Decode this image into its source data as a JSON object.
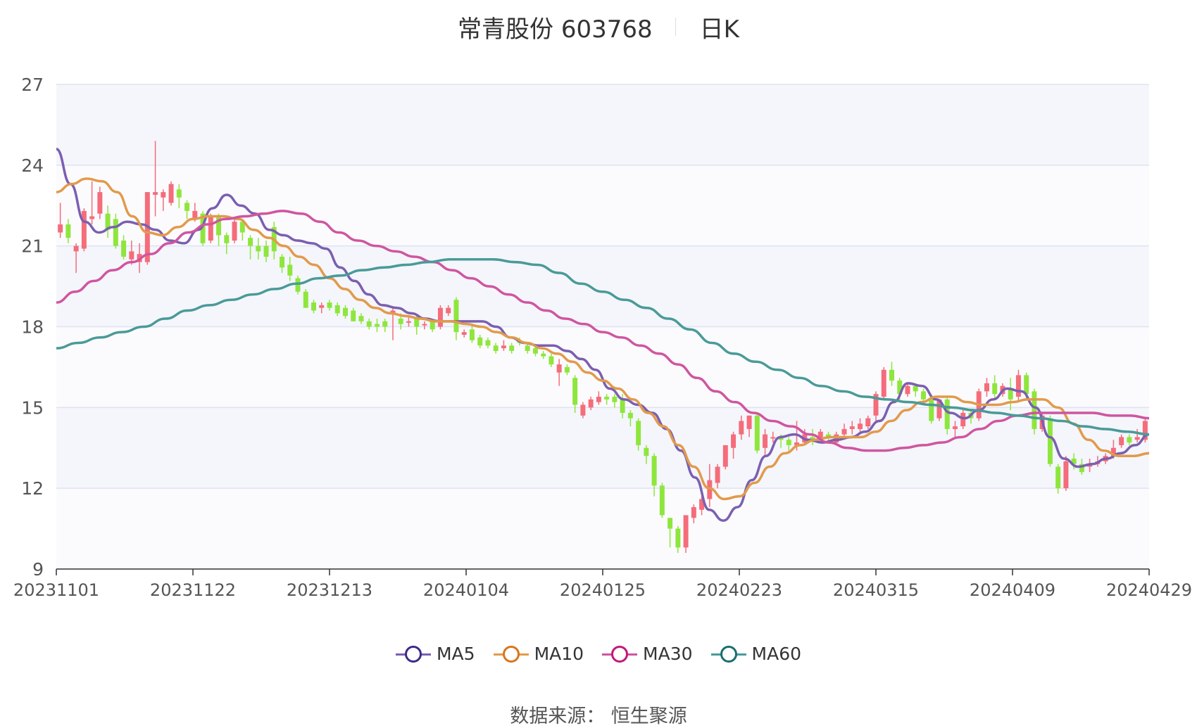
{
  "header": {
    "stock": "常青股份 603768",
    "period": "日K"
  },
  "legend": [
    {
      "label": "MA5",
      "color": "#7b5fb0",
      "ring": "#3d2a8a"
    },
    {
      "label": "MA10",
      "color": "#e29a4b",
      "ring": "#d9751a"
    },
    {
      "label": "MA30",
      "color": "#d055a0",
      "ring": "#c2187a"
    },
    {
      "label": "MA60",
      "color": "#4a9a98",
      "ring": "#1a6e6e"
    }
  ],
  "source": "数据来源： 恒生聚源",
  "colors": {
    "up": "#f56c7a",
    "down": "#8ee63d",
    "grid": "#dde3f2",
    "band": "#f4f6fb"
  },
  "chart_data": {
    "type": "candlestick",
    "title": "常青股份 603768",
    "ylim": [
      9,
      27
    ],
    "yticks": [
      "9",
      "12",
      "15",
      "18",
      "21",
      "24",
      "27"
    ],
    "xticks": [
      "20231101",
      "20231122",
      "20231213",
      "20240104",
      "20240125",
      "20240223",
      "20240315",
      "20240409",
      "20240429"
    ],
    "candles": [
      [
        21.5,
        21.8,
        21.3,
        22.6
      ],
      [
        21.8,
        21.3,
        21.1,
        22.0
      ],
      [
        20.8,
        21.0,
        20.0,
        21.1
      ],
      [
        20.9,
        22.3,
        20.8,
        22.4
      ],
      [
        22.0,
        22.1,
        21.8,
        23.4
      ],
      [
        22.2,
        23.0,
        22.0,
        23.2
      ],
      [
        22.2,
        21.6,
        21.3,
        22.5
      ],
      [
        22.0,
        21.0,
        20.9,
        22.2
      ],
      [
        21.2,
        20.6,
        20.5,
        21.4
      ],
      [
        20.5,
        20.8,
        20.3,
        21.2
      ],
      [
        20.4,
        20.7,
        20.0,
        21.1
      ],
      [
        20.4,
        23.0,
        20.3,
        23.0
      ],
      [
        22.9,
        23.0,
        22.1,
        24.9
      ],
      [
        22.8,
        23.0,
        22.3,
        23.1
      ],
      [
        22.6,
        23.3,
        22.5,
        23.4
      ],
      [
        23.1,
        22.8,
        22.4,
        23.3
      ],
      [
        22.6,
        22.3,
        22.0,
        22.7
      ],
      [
        22.0,
        22.3,
        21.9,
        22.6
      ],
      [
        22.2,
        21.1,
        21.0,
        22.3
      ],
      [
        21.2,
        22.1,
        21.1,
        22.2
      ],
      [
        22.1,
        21.4,
        21.0,
        22.2
      ],
      [
        21.4,
        21.1,
        20.7,
        21.5
      ],
      [
        21.2,
        21.9,
        21.1,
        22.0
      ],
      [
        21.9,
        21.5,
        21.2,
        22.0
      ],
      [
        21.3,
        21.0,
        20.5,
        21.4
      ],
      [
        21.0,
        20.8,
        20.5,
        21.3
      ],
      [
        21.0,
        20.6,
        20.4,
        21.2
      ],
      [
        21.7,
        20.8,
        20.5,
        21.9
      ],
      [
        20.6,
        20.2,
        20.0,
        20.7
      ],
      [
        20.3,
        19.9,
        19.7,
        20.6
      ],
      [
        19.8,
        19.3,
        19.2,
        19.9
      ],
      [
        19.3,
        18.7,
        18.7,
        19.4
      ],
      [
        18.9,
        18.6,
        18.5,
        19.0
      ],
      [
        18.7,
        18.8,
        18.5,
        18.9
      ],
      [
        18.9,
        18.7,
        18.6,
        19.0
      ],
      [
        18.8,
        18.5,
        18.4,
        18.9
      ],
      [
        18.7,
        18.4,
        18.3,
        18.8
      ],
      [
        18.6,
        18.2,
        18.2,
        18.7
      ],
      [
        18.4,
        18.2,
        18.1,
        18.5
      ],
      [
        18.2,
        18.0,
        17.9,
        18.3
      ],
      [
        18.1,
        18.0,
        17.8,
        18.3
      ],
      [
        18.2,
        18.0,
        17.8,
        18.3
      ],
      [
        18.5,
        18.6,
        17.5,
        18.7
      ],
      [
        18.3,
        18.1,
        17.9,
        18.5
      ],
      [
        18.2,
        18.2,
        18.0,
        18.4
      ],
      [
        18.3,
        18.0,
        17.7,
        18.4
      ],
      [
        18.1,
        18.1,
        17.9,
        18.2
      ],
      [
        18.2,
        17.9,
        17.8,
        18.2
      ],
      [
        18.0,
        18.7,
        17.9,
        18.8
      ],
      [
        18.5,
        18.7,
        18.4,
        18.8
      ],
      [
        19.0,
        17.8,
        17.5,
        19.1
      ],
      [
        17.7,
        17.8,
        17.6,
        17.9
      ],
      [
        17.9,
        17.5,
        17.4,
        18.1
      ],
      [
        17.6,
        17.3,
        17.2,
        17.7
      ],
      [
        17.5,
        17.3,
        17.2,
        17.6
      ],
      [
        17.3,
        17.1,
        17.0,
        17.4
      ],
      [
        17.2,
        17.3,
        17.1,
        17.5
      ],
      [
        17.3,
        17.1,
        17.0,
        17.4
      ],
      [
        17.5,
        17.4,
        17.3,
        17.6
      ],
      [
        17.3,
        17.1,
        17.0,
        17.4
      ],
      [
        17.2,
        17.0,
        16.9,
        17.3
      ],
      [
        17.0,
        16.9,
        16.8,
        17.1
      ],
      [
        16.9,
        16.6,
        16.5,
        17.0
      ],
      [
        16.3,
        16.6,
        15.8,
        16.8
      ],
      [
        16.5,
        16.3,
        16.2,
        16.6
      ],
      [
        16.1,
        15.1,
        14.8,
        16.2
      ],
      [
        14.7,
        15.1,
        14.6,
        15.2
      ],
      [
        15.0,
        15.3,
        14.9,
        15.4
      ],
      [
        15.2,
        15.4,
        15.1,
        15.6
      ],
      [
        15.4,
        15.3,
        15.1,
        15.5
      ],
      [
        15.4,
        15.2,
        15.0,
        15.5
      ],
      [
        15.3,
        14.8,
        14.6,
        15.5
      ],
      [
        14.8,
        14.6,
        14.3,
        14.9
      ],
      [
        14.5,
        13.6,
        13.4,
        14.6
      ],
      [
        13.5,
        13.2,
        12.9,
        13.6
      ],
      [
        13.2,
        12.1,
        11.7,
        13.3
      ],
      [
        12.1,
        11.0,
        10.9,
        12.2
      ],
      [
        10.9,
        10.5,
        9.8,
        10.9
      ],
      [
        10.5,
        9.8,
        9.6,
        10.6
      ],
      [
        9.8,
        11.0,
        9.6,
        11.0
      ],
      [
        10.9,
        11.3,
        10.7,
        11.4
      ],
      [
        11.2,
        11.6,
        11.0,
        11.7
      ],
      [
        11.6,
        12.3,
        11.3,
        12.9
      ],
      [
        12.2,
        12.8,
        12.0,
        12.9
      ],
      [
        12.8,
        13.6,
        12.7,
        13.6
      ],
      [
        13.5,
        14.0,
        13.1,
        14.1
      ],
      [
        14.0,
        14.5,
        13.8,
        14.7
      ],
      [
        14.2,
        14.7,
        13.9,
        14.7
      ],
      [
        14.7,
        13.4,
        13.3,
        14.8
      ],
      [
        13.5,
        14.0,
        13.2,
        14.2
      ],
      [
        13.9,
        13.9,
        13.7,
        14.1
      ],
      [
        13.9,
        13.8,
        13.5,
        14.0
      ],
      [
        13.8,
        13.6,
        13.4,
        13.9
      ],
      [
        13.6,
        13.7,
        13.4,
        14.5
      ],
      [
        13.7,
        14.0,
        13.6,
        14.2
      ],
      [
        13.9,
        13.8,
        13.6,
        14.2
      ],
      [
        13.8,
        14.1,
        13.7,
        14.2
      ],
      [
        14.0,
        13.9,
        13.7,
        14.1
      ],
      [
        13.7,
        14.0,
        13.6,
        14.1
      ],
      [
        14.0,
        14.2,
        13.9,
        14.4
      ],
      [
        14.2,
        14.3,
        14.0,
        14.5
      ],
      [
        14.2,
        14.4,
        14.1,
        14.6
      ],
      [
        14.3,
        14.6,
        14.2,
        14.7
      ],
      [
        14.7,
        15.5,
        14.5,
        15.6
      ],
      [
        15.4,
        16.4,
        15.3,
        16.5
      ],
      [
        16.4,
        16.0,
        15.8,
        16.7
      ],
      [
        16.0,
        15.5,
        15.3,
        16.1
      ],
      [
        15.5,
        15.8,
        15.4,
        15.9
      ],
      [
        15.8,
        15.6,
        15.4,
        15.9
      ],
      [
        15.6,
        15.3,
        15.1,
        15.7
      ],
      [
        15.3,
        14.5,
        14.4,
        15.4
      ],
      [
        14.6,
        15.3,
        14.5,
        15.3
      ],
      [
        15.3,
        14.2,
        14.0,
        15.4
      ],
      [
        14.2,
        14.3,
        13.9,
        14.5
      ],
      [
        14.3,
        14.8,
        14.2,
        14.9
      ],
      [
        14.8,
        14.6,
        14.4,
        14.9
      ],
      [
        14.6,
        15.6,
        14.5,
        15.7
      ],
      [
        15.6,
        15.9,
        15.4,
        16.1
      ],
      [
        15.9,
        15.5,
        15.3,
        16.2
      ],
      [
        15.5,
        15.8,
        15.4,
        15.9
      ],
      [
        15.7,
        15.3,
        14.9,
        16.1
      ],
      [
        15.4,
        16.2,
        15.2,
        16.4
      ],
      [
        16.2,
        15.5,
        15.3,
        16.3
      ],
      [
        15.6,
        14.2,
        14.0,
        15.7
      ],
      [
        14.2,
        14.7,
        14.1,
        14.8
      ],
      [
        14.6,
        12.9,
        12.8,
        14.7
      ],
      [
        12.8,
        12.0,
        11.8,
        12.9
      ],
      [
        12.0,
        13.0,
        11.9,
        13.2
      ],
      [
        13.1,
        12.9,
        12.7,
        13.3
      ],
      [
        12.9,
        12.6,
        12.5,
        13.1
      ],
      [
        12.8,
        12.9,
        12.6,
        13.1
      ],
      [
        12.9,
        13.0,
        12.8,
        13.2
      ],
      [
        13.0,
        13.2,
        12.9,
        13.3
      ],
      [
        13.2,
        13.5,
        13.1,
        13.8
      ],
      [
        13.6,
        13.9,
        13.5,
        14.0
      ],
      [
        13.9,
        13.7,
        13.6,
        14.0
      ],
      [
        13.8,
        13.9,
        13.7,
        14.2
      ],
      [
        13.8,
        14.5,
        13.7,
        14.6
      ]
    ],
    "series": [
      {
        "name": "MA5",
        "values": [
          24.6,
          23.3,
          21.9,
          21.5,
          21.7,
          21.9,
          21.8,
          21.6,
          21.2,
          21.1,
          21.6,
          22.4,
          22.9,
          22.5,
          22.2,
          21.6,
          21.4,
          21.2,
          21.1,
          20.9,
          20.2,
          19.7,
          19.2,
          18.8,
          18.7,
          18.5,
          18.3,
          18.2,
          18.2,
          18.2,
          18.2,
          18.0,
          17.6,
          17.4,
          17.3,
          17.3,
          17.1,
          16.8,
          16.4,
          15.7,
          15.3,
          15.1,
          14.8,
          14.2,
          13.4,
          12.4,
          11.2,
          10.8,
          11.3,
          12.3,
          13.2,
          13.9,
          14.0,
          13.8,
          13.7,
          13.8,
          13.9,
          14.1,
          14.5,
          15.2,
          15.9,
          15.8,
          15.3,
          14.8,
          14.6,
          14.9,
          15.3,
          15.7,
          15.6,
          15.0,
          13.9,
          13.1,
          12.8,
          12.9,
          13.1,
          13.3,
          13.6,
          14.0
        ]
      },
      {
        "name": "MA10",
        "values": [
          23.0,
          23.3,
          23.5,
          23.4,
          23.0,
          22.1,
          21.5,
          21.4,
          21.7,
          22.0,
          22.1,
          22.1,
          22.0,
          21.6,
          21.3,
          21.0,
          20.6,
          20.3,
          19.8,
          19.4,
          19.0,
          18.7,
          18.5,
          18.4,
          18.3,
          18.2,
          18.2,
          18.1,
          18.0,
          17.8,
          17.6,
          17.4,
          17.2,
          17.0,
          16.7,
          16.3,
          16.0,
          15.7,
          15.3,
          14.8,
          14.3,
          13.6,
          12.8,
          12.0,
          11.6,
          11.7,
          12.2,
          12.8,
          13.3,
          13.6,
          13.8,
          13.9,
          13.9,
          13.9,
          14.1,
          14.5,
          14.9,
          15.2,
          15.4,
          15.4,
          15.2,
          15.1,
          15.1,
          15.2,
          15.3,
          15.3,
          15.0,
          14.4,
          13.8,
          13.4,
          13.2,
          13.2,
          13.3
        ]
      },
      {
        "name": "MA30",
        "values": [
          18.9,
          19.3,
          19.7,
          20.1,
          20.4,
          20.7,
          21.1,
          21.5,
          21.8,
          22.0,
          22.1,
          22.2,
          22.3,
          22.2,
          21.9,
          21.5,
          21.2,
          21.0,
          20.8,
          20.6,
          20.4,
          20.1,
          19.8,
          19.5,
          19.2,
          18.9,
          18.6,
          18.3,
          18.1,
          17.8,
          17.6,
          17.3,
          17.0,
          16.6,
          16.1,
          15.6,
          15.2,
          14.8,
          14.5,
          14.3,
          14.0,
          13.7,
          13.5,
          13.4,
          13.4,
          13.5,
          13.6,
          13.7,
          13.9,
          14.2,
          14.5,
          14.7,
          14.8,
          14.8,
          14.8,
          14.8,
          14.7,
          14.7,
          14.6
        ]
      },
      {
        "name": "MA60",
        "values": [
          17.2,
          17.4,
          17.6,
          17.8,
          18.0,
          18.3,
          18.6,
          18.8,
          19.0,
          19.2,
          19.4,
          19.6,
          19.8,
          19.9,
          20.1,
          20.2,
          20.3,
          20.4,
          20.5,
          20.5,
          20.5,
          20.4,
          20.3,
          20.0,
          19.6,
          19.3,
          19.0,
          18.7,
          18.3,
          17.9,
          17.4,
          17.0,
          16.7,
          16.4,
          16.1,
          15.8,
          15.6,
          15.4,
          15.3,
          15.2,
          15.1,
          15.0,
          14.9,
          14.8,
          14.7,
          14.6,
          14.5,
          14.3,
          14.2,
          14.1,
          14.0
        ]
      }
    ]
  }
}
